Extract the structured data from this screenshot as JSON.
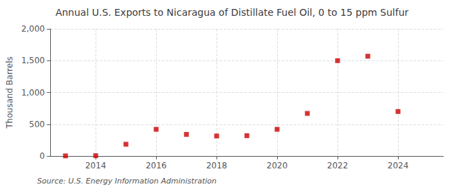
{
  "chart_data": {
    "type": "scatter",
    "title": "Annual U.S. Exports to Nicaragua of Distillate Fuel Oil, 0 to 15 ppm Sulfur",
    "ylabel": "Thousand Barrels",
    "annotation": "Source: U.S. Energy Information Administration",
    "x": [
      2013,
      2014,
      2015,
      2016,
      2017,
      2018,
      2019,
      2020,
      2021,
      2022,
      2023,
      2024
    ],
    "values": [
      2,
      5,
      185,
      420,
      340,
      315,
      320,
      420,
      670,
      1500,
      1570,
      700
    ],
    "color": "#cc0000",
    "marker": "square",
    "xlim": [
      2012.5,
      2025.5
    ],
    "xticks": [
      2014,
      2016,
      2018,
      2020,
      2022,
      2024
    ],
    "ylim": [
      0,
      2000
    ],
    "yticks": [
      0,
      500,
      {
        "value": 1000,
        "label": "1,000"
      },
      {
        "value": 1500,
        "label": "1,500"
      },
      {
        "value": 2000,
        "label": "2,000"
      }
    ],
    "grid": true
  }
}
